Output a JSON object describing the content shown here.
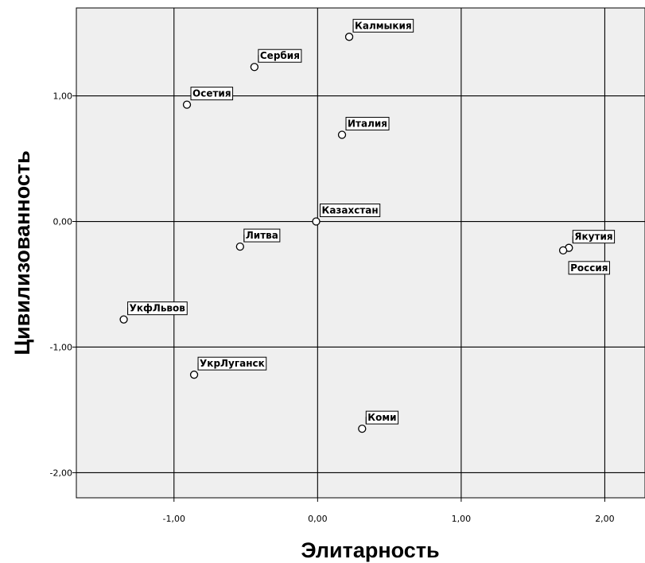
{
  "chart_data": {
    "type": "scatter",
    "xlabel": "Элитарность",
    "ylabel": "Цивилизованность",
    "xlim": [
      -1.68,
      2.28
    ],
    "ylim": [
      -2.2,
      1.7
    ],
    "x_ticks": [
      -1,
      0,
      1,
      2
    ],
    "x_tick_labels": [
      "-1,00",
      "0,00",
      "1,00",
      "2,00"
    ],
    "y_ticks": [
      1,
      0,
      -1,
      -2
    ],
    "y_tick_labels": [
      "1,00",
      "0,00",
      "-1,00",
      "-2,00"
    ],
    "grid": true,
    "background": "#efefef",
    "points": [
      {
        "label": "Калмыкия",
        "x": 0.22,
        "y": 1.47,
        "label_pos": "upper-right"
      },
      {
        "label": "Сербия",
        "x": -0.44,
        "y": 1.23,
        "label_pos": "upper-right"
      },
      {
        "label": "Осетия",
        "x": -0.91,
        "y": 0.93,
        "label_pos": "upper-right"
      },
      {
        "label": "Италия",
        "x": 0.17,
        "y": 0.69,
        "label_pos": "upper-right"
      },
      {
        "label": "Казахстан",
        "x": -0.01,
        "y": 0.0,
        "label_pos": "upper-right"
      },
      {
        "label": "Литва",
        "x": -0.54,
        "y": -0.2,
        "label_pos": "upper-right"
      },
      {
        "label": "Якутия",
        "x": 1.75,
        "y": -0.21,
        "label_pos": "upper-right"
      },
      {
        "label": "Россия",
        "x": 1.71,
        "y": -0.23,
        "label_pos": "below"
      },
      {
        "label": "УкфЛьвов",
        "x": -1.35,
        "y": -0.78,
        "label_pos": "upper-right"
      },
      {
        "label": "УкрЛуганск",
        "x": -0.86,
        "y": -1.22,
        "label_pos": "upper-right"
      },
      {
        "label": "Коми",
        "x": 0.31,
        "y": -1.65,
        "label_pos": "upper-right"
      }
    ]
  }
}
